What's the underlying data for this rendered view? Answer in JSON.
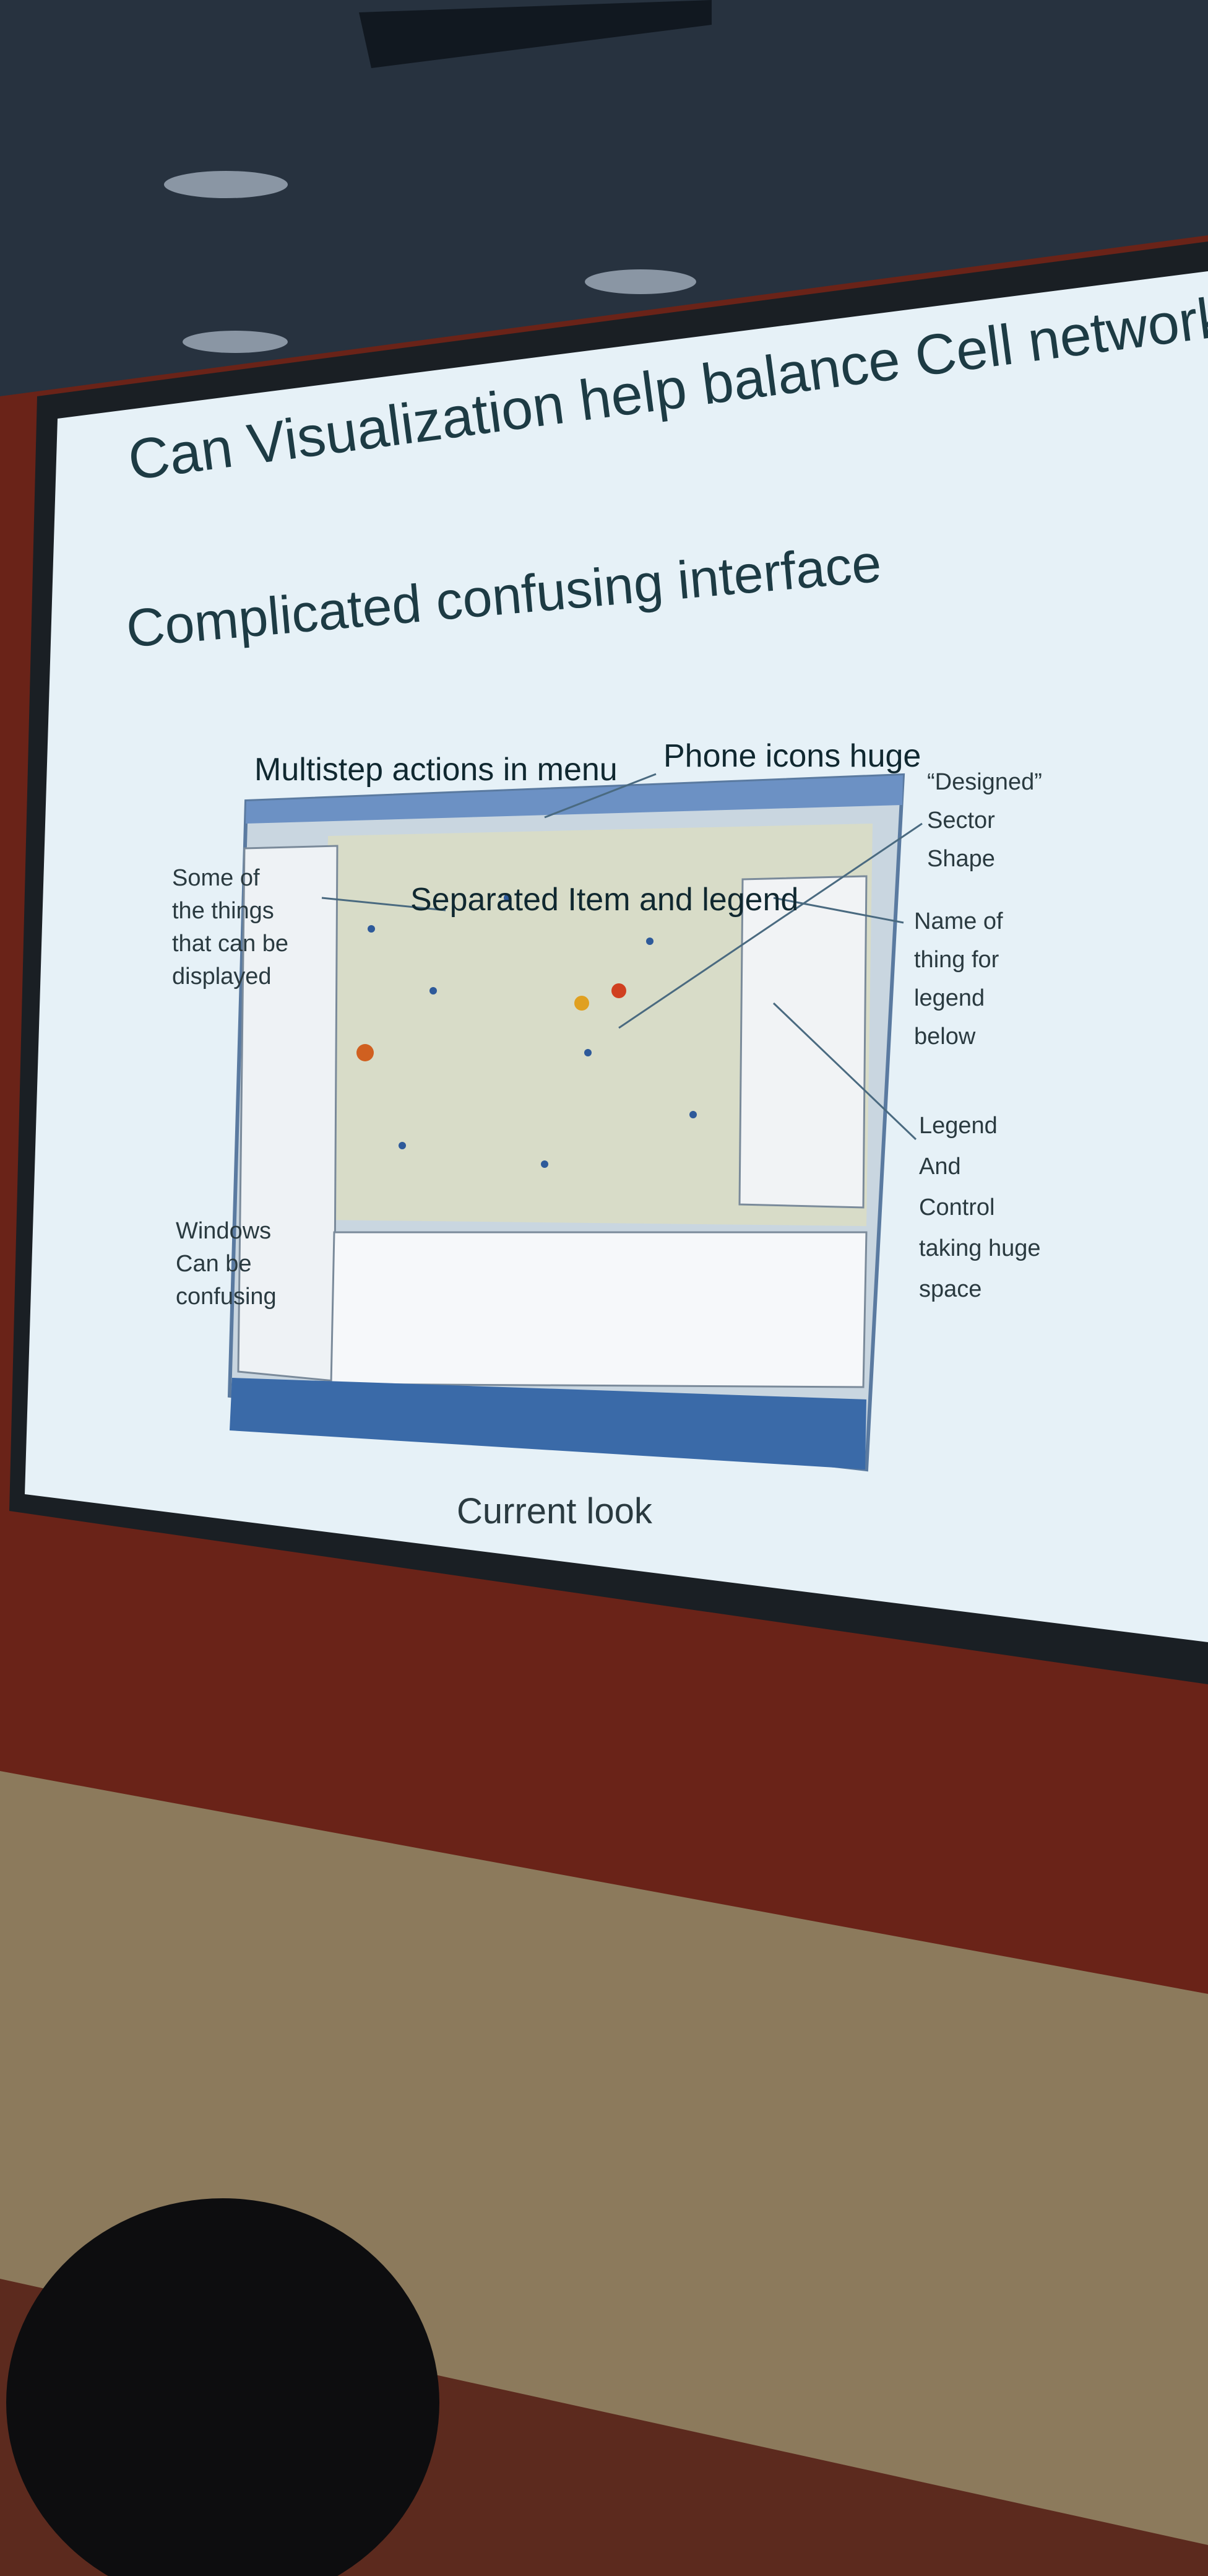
{
  "slide": {
    "title": "Can Visualization help  balance Cell networks?",
    "subtitle": "Complicated confusing interface",
    "annotations": {
      "menu": "Multistep actions in menu",
      "icons": "Phone icons huge",
      "sector": [
        "“Designed”",
        "Sector",
        "Shape"
      ],
      "displayed": [
        "Some of",
        "the things",
        "that can be",
        "displayed"
      ],
      "separated": "Separated Item and legend",
      "name": [
        "Name of",
        "thing for",
        "legend",
        "below"
      ],
      "legend": [
        "Legend",
        "And",
        "Control",
        "taking huge",
        "space"
      ],
      "windows": [
        "Windows",
        "Can be",
        "confusing"
      ]
    },
    "caption": "Current look"
  }
}
